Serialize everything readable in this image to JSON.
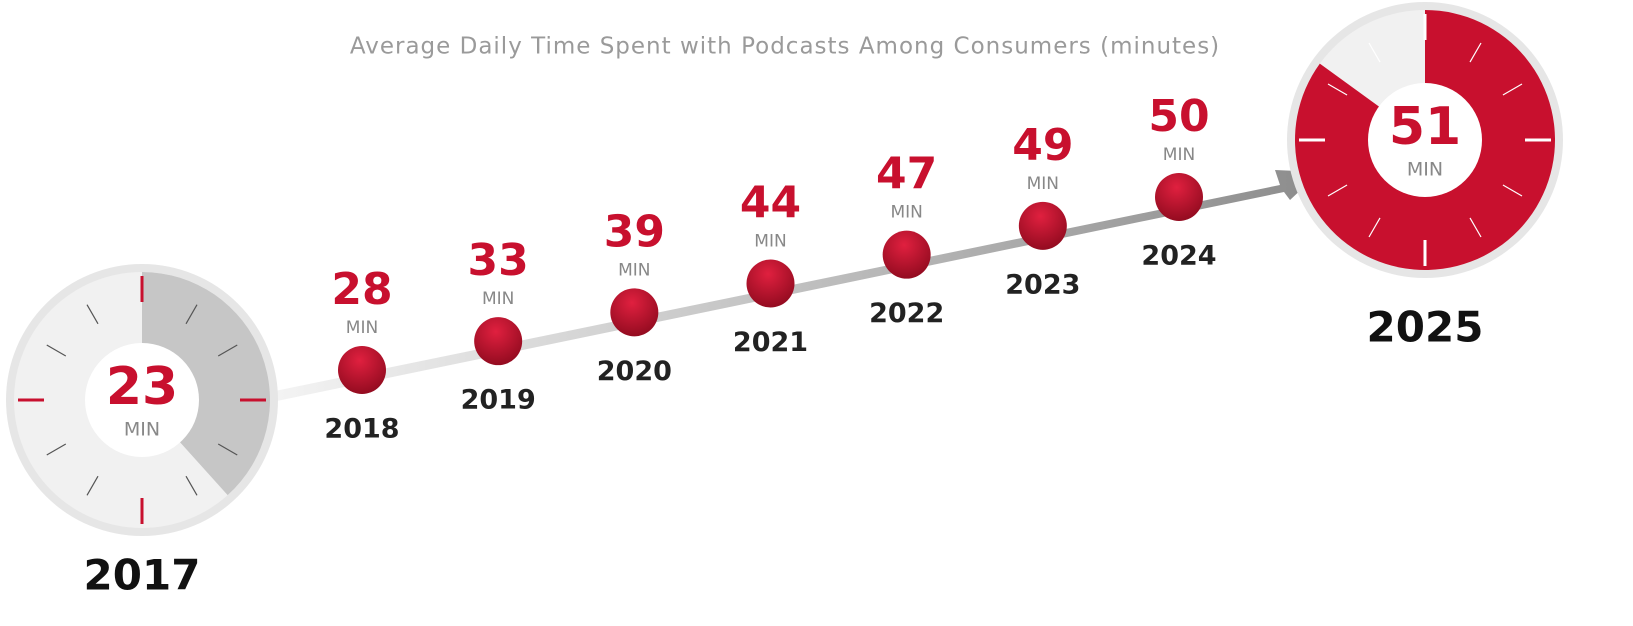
{
  "chart_data": {
    "type": "timeline",
    "title": "Average Daily Time Spent with Podcasts Among Consumers (minutes)",
    "unit": "MIN",
    "categories": [
      "2017",
      "2018",
      "2019",
      "2020",
      "2021",
      "2022",
      "2023",
      "2024",
      "2025"
    ],
    "values": [
      23,
      28,
      33,
      39,
      44,
      47,
      49,
      50,
      51
    ],
    "dial_max": 60,
    "color": "#c8102e"
  }
}
